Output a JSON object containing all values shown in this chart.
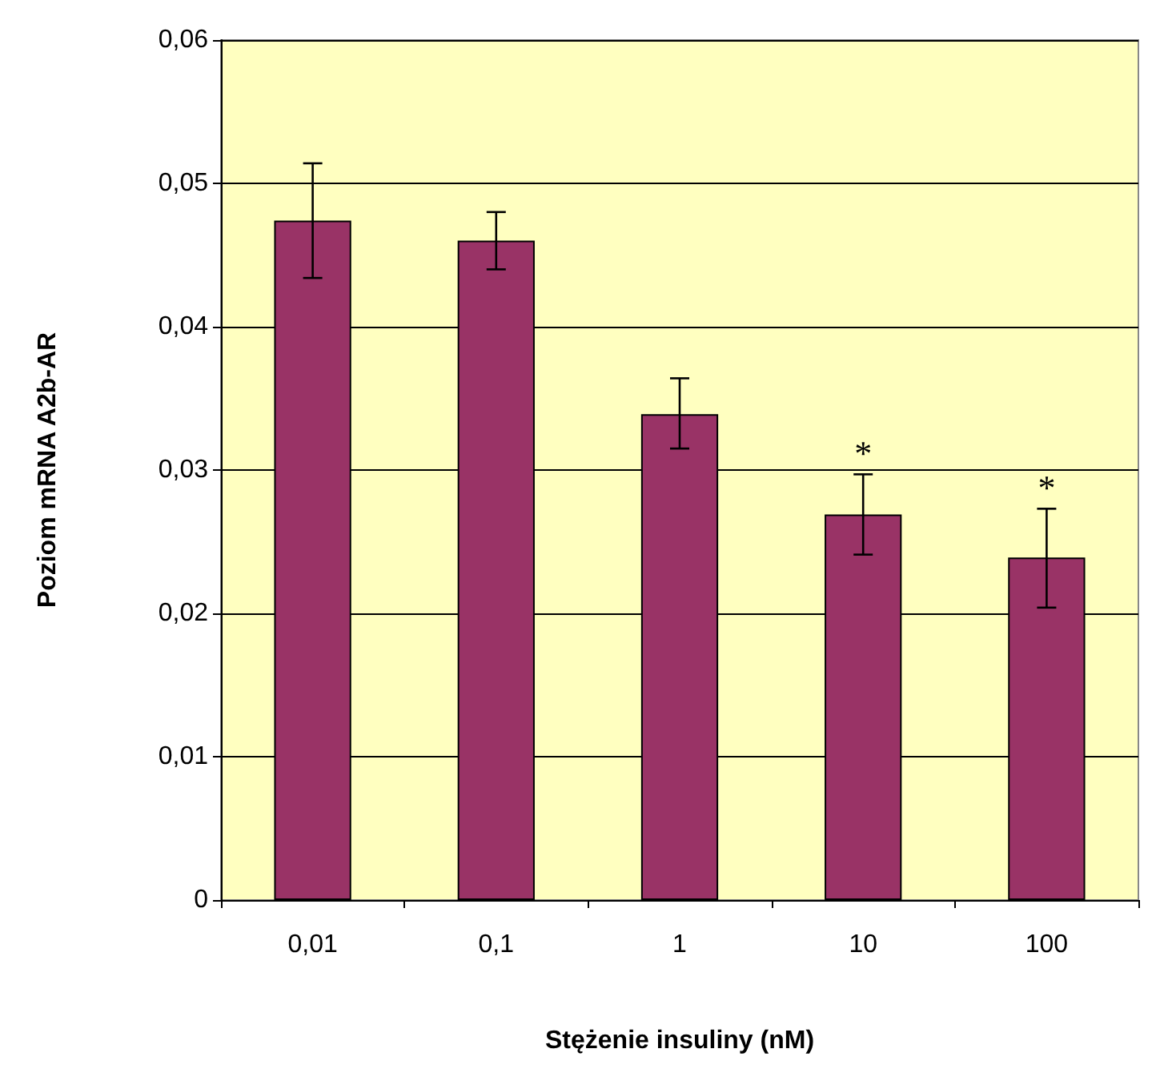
{
  "chart_data": {
    "type": "bar",
    "xlabel": "Stężenie insuliny (nM)",
    "ylabel": "Poziom mRNA A2b-AR",
    "categories": [
      "0,01",
      "0,1",
      "1",
      "10",
      "100"
    ],
    "values": [
      0.0474,
      0.046,
      0.0339,
      0.0269,
      0.0239
    ],
    "color": "#993366",
    "errors": [
      [
        0.0434,
        0.0514
      ],
      [
        0.044,
        0.048
      ],
      [
        0.0315,
        0.0364
      ],
      [
        0.0241,
        0.0297
      ],
      [
        0.0204,
        0.0273
      ]
    ],
    "ylim": [
      0,
      0.06
    ],
    "yticks": [
      0,
      {
        "value": 0.01,
        "label": "0,01"
      },
      {
        "value": 0.02,
        "label": "0,02"
      },
      {
        "value": 0.03,
        "label": "0,03"
      },
      {
        "value": 0.04,
        "label": "0,04"
      },
      {
        "value": 0.05,
        "label": "0,05"
      },
      {
        "value": 0.06,
        "label": "0,06"
      }
    ],
    "annotations": [
      {
        "text": "*",
        "x": "10",
        "y": 0.0297
      },
      {
        "text": "*",
        "x": "100",
        "y": 0.0273
      }
    ],
    "grid": "y"
  }
}
